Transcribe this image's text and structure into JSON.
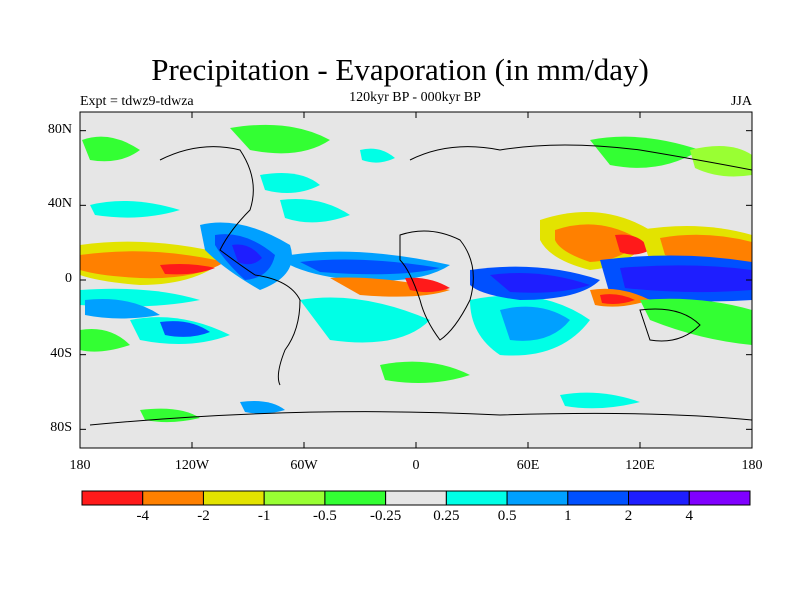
{
  "title": "Precipitation - Evaporation (in mm/day)",
  "subtitle": "120kyr BP - 000kyr BP",
  "expt_label": "Expt = tdwz9-tdwza",
  "season": "JJA",
  "axes": {
    "y_ticks": [
      {
        "label": "80N",
        "lat": 80
      },
      {
        "label": "40N",
        "lat": 40
      },
      {
        "label": "0",
        "lat": 0
      },
      {
        "label": "40S",
        "lat": -40
      },
      {
        "label": "80S",
        "lat": -80
      }
    ],
    "x_ticks": [
      {
        "label": "180",
        "lon": -180
      },
      {
        "label": "120W",
        "lon": -120
      },
      {
        "label": "60W",
        "lon": -60
      },
      {
        "label": "0",
        "lon": 0
      },
      {
        "label": "60E",
        "lon": 60
      },
      {
        "label": "120E",
        "lon": 120
      },
      {
        "label": "180",
        "lon": 180
      }
    ],
    "lon_range": [
      -180,
      180
    ],
    "lat_range": [
      -90,
      90
    ]
  },
  "colorbar": {
    "colors": [
      "#ff1a1a",
      "#ff8000",
      "#e3e300",
      "#99ff33",
      "#33ff33",
      "#e6e6e6",
      "#00ffe6",
      "#00a0ff",
      "#0050ff",
      "#1e1eff",
      "#8000ff"
    ],
    "labels": [
      "-4",
      "-2",
      "-1",
      "-0.5",
      "-0.25",
      "0.25",
      "0.5",
      "1",
      "2",
      "4"
    ]
  },
  "background_color": "#e6e6e6"
}
